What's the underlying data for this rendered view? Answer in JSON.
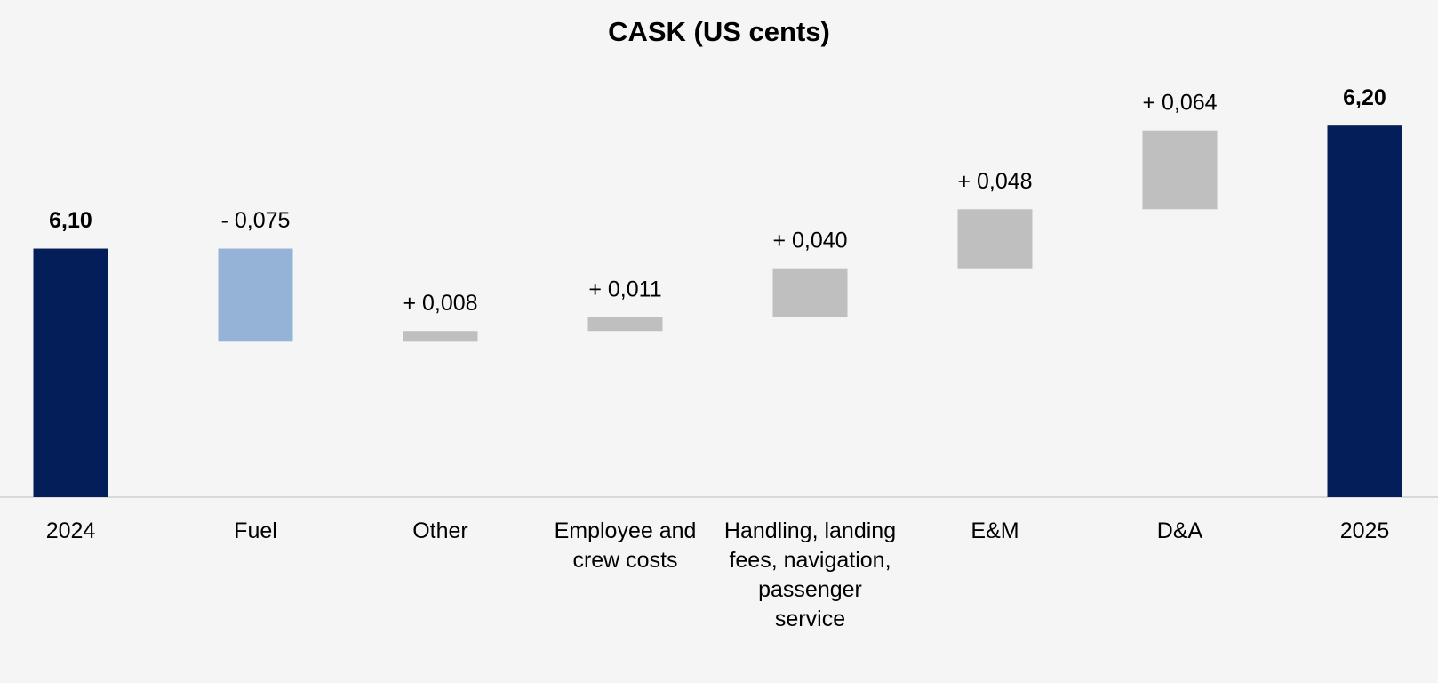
{
  "chart_data": {
    "type": "waterfall",
    "title": "CASK (US cents)",
    "categories": [
      "2024",
      "Fuel",
      "Other",
      "Employee and crew costs",
      "Handling, landing fees, navigation, passenger service",
      "E&M",
      "D&A",
      "2025"
    ],
    "values": [
      6.1,
      -0.075,
      0.008,
      0.011,
      0.04,
      0.048,
      0.064,
      6.2
    ],
    "value_labels": [
      "6,10",
      "- 0,075",
      "+ 0,008",
      "+ 0,011",
      "+ 0,040",
      "+ 0,048",
      "+ 0,064",
      "6,20"
    ],
    "measure": [
      "total",
      "relative",
      "relative",
      "relative",
      "relative",
      "relative",
      "relative",
      "total"
    ],
    "colors": {
      "total": "#041e5a",
      "increase": "#bfbfbf",
      "decrease": "#95b3d7"
    },
    "ylim": [
      5.898,
      6.237
    ],
    "grid": false
  }
}
